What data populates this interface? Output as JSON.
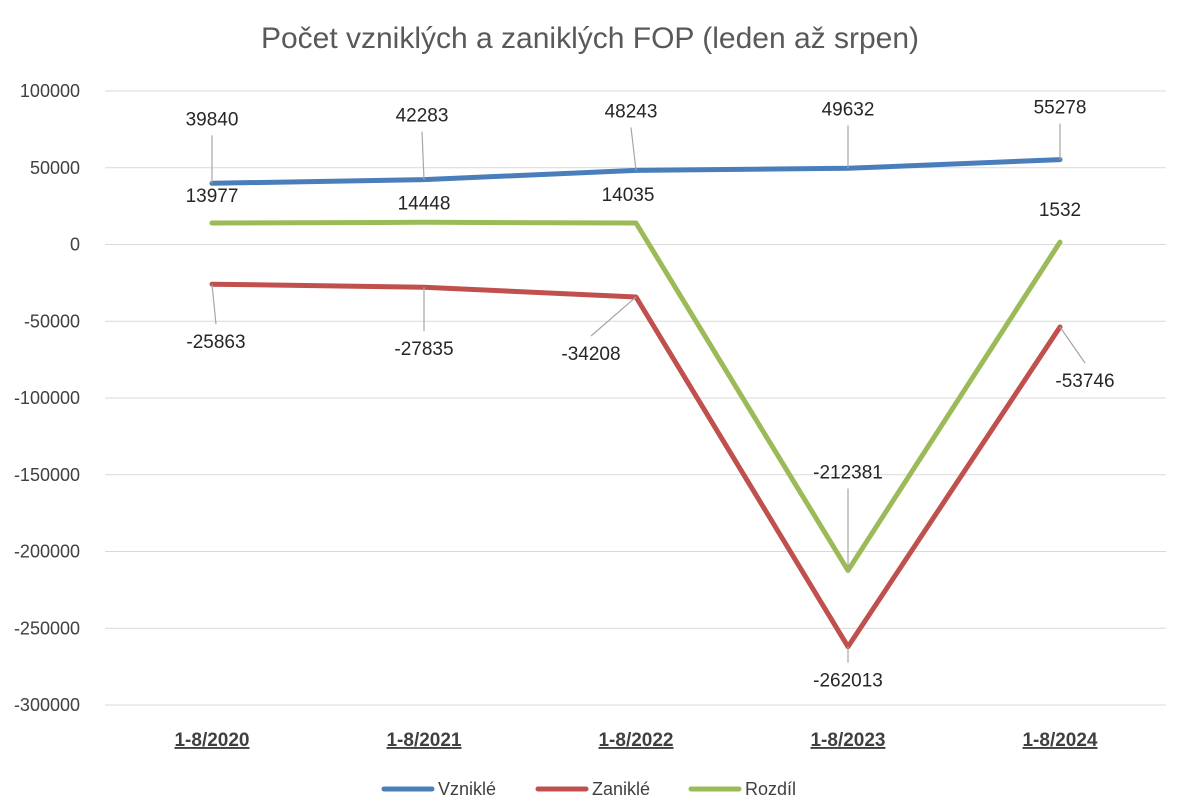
{
  "chart_data": {
    "type": "line",
    "title": "Počet vzniklých a zaniklých FOP (leden až srpen)",
    "categories": [
      "1-8/2020",
      "1-8/2021",
      "1-8/2022",
      "1-8/2023",
      "1-8/2024"
    ],
    "ylim": [
      -300000,
      100000
    ],
    "yticks": [
      100000,
      50000,
      0,
      -50000,
      -100000,
      -150000,
      -200000,
      -250000,
      -300000
    ],
    "grid": true,
    "legend_position": "bottom",
    "series": [
      {
        "name": "Vzniklé",
        "color": "#4a7ebb",
        "values": [
          39840,
          42283,
          48243,
          49632,
          55278
        ]
      },
      {
        "name": "Zaniklé",
        "color": "#c0504d",
        "values": [
          -25863,
          -27835,
          -34208,
          -262013,
          -53746
        ]
      },
      {
        "name": "Rozdíl",
        "color": "#9bbb59",
        "values": [
          13977,
          14448,
          14035,
          -212381,
          1532
        ]
      }
    ]
  }
}
